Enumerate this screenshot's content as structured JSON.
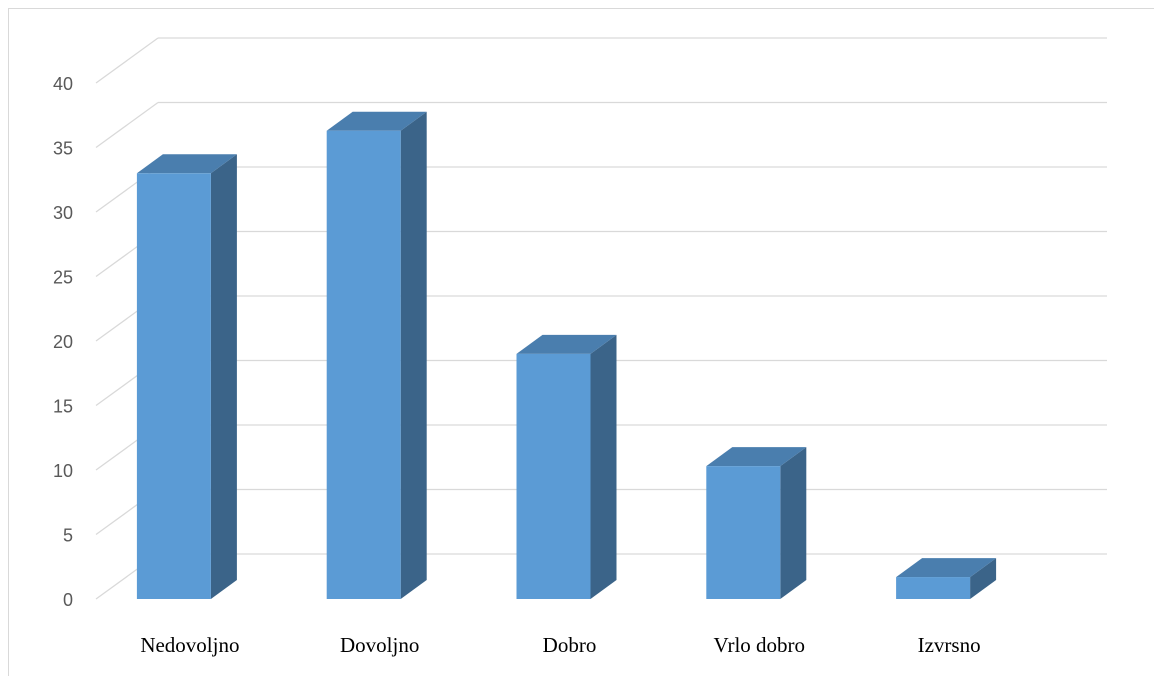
{
  "chart_data": {
    "type": "bar",
    "style": "3d-column",
    "categories": [
      "Nedovoljno",
      "Dovoljno",
      "Dobro",
      "Vrlo dobro",
      "Izvrsno"
    ],
    "values": [
      33,
      36.3,
      19,
      10.3,
      1.7
    ],
    "title": "",
    "xlabel": "",
    "ylabel": "",
    "ylim": [
      0,
      40
    ],
    "yticks": [
      0,
      5,
      10,
      15,
      20,
      25,
      30,
      35,
      40
    ],
    "grid": true,
    "legend": "none",
    "colors": {
      "front": "#5b9bd5",
      "side": "#3b6489",
      "top": "#4a7eae",
      "grid": "#d9d9d9",
      "tick_text": "#595959"
    }
  }
}
